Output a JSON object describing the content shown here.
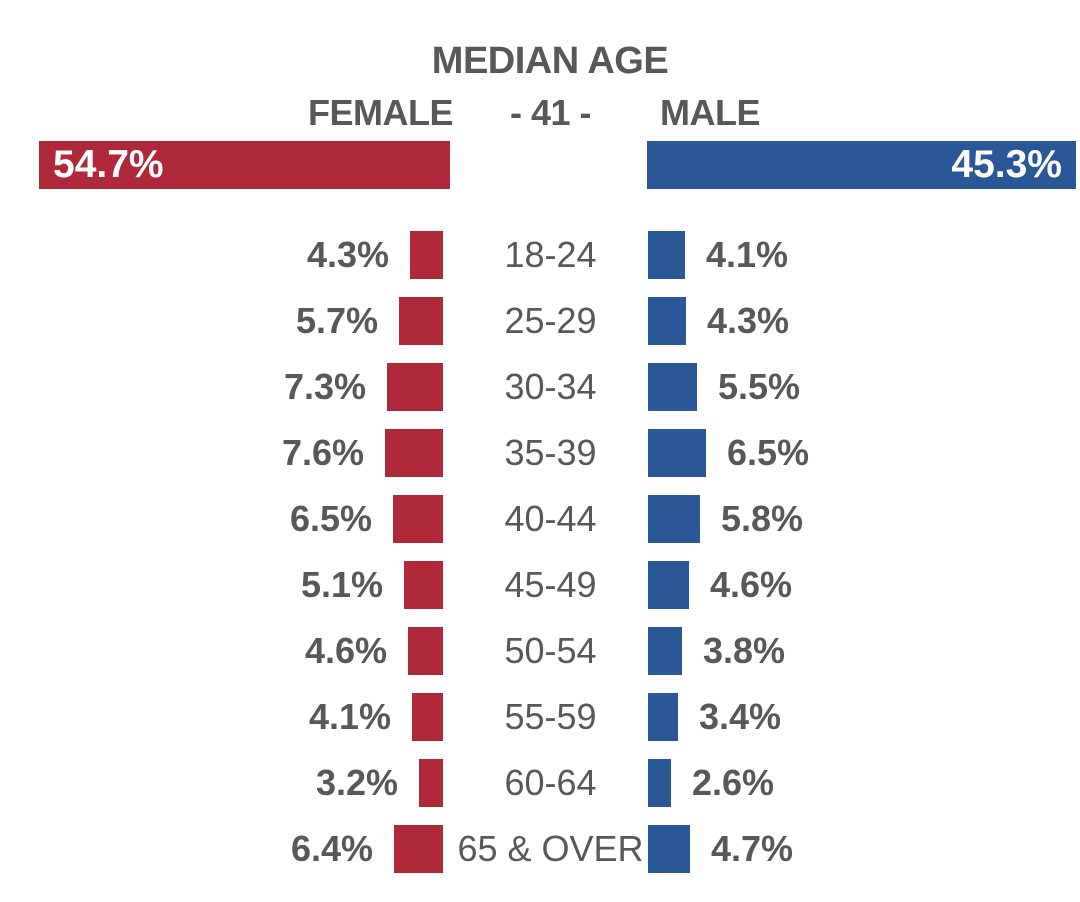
{
  "title": "MEDIAN AGE",
  "header": {
    "female_label": "FEMALE",
    "median_display": "- 41 -",
    "male_label": "MALE"
  },
  "totals": {
    "female_percent": "54.7%",
    "male_percent": "45.3%"
  },
  "colors": {
    "female_bar": "#B0293A",
    "male_bar": "#2A5796",
    "label_text": "#57585A",
    "bar_label_text": "#FFFFFF",
    "background": "#FFFFFF"
  },
  "chart_data": {
    "type": "bar",
    "subtype": "population-pyramid",
    "title": "MEDIAN AGE",
    "median_age": 41,
    "value_suffix": "%",
    "grid": false,
    "legend_position": "top",
    "categories": [
      "18-24",
      "25-29",
      "30-34",
      "35-39",
      "40-44",
      "45-49",
      "50-54",
      "55-59",
      "60-64",
      "65 & OVER"
    ],
    "series": [
      {
        "name": "FEMALE",
        "total": 54.7,
        "color": "#B0293A",
        "values": [
          4.3,
          5.7,
          7.3,
          7.6,
          6.5,
          5.1,
          4.6,
          4.1,
          3.2,
          6.4
        ]
      },
      {
        "name": "MALE",
        "total": 45.3,
        "color": "#2A5796",
        "values": [
          4.1,
          4.3,
          5.5,
          6.5,
          5.8,
          4.6,
          3.8,
          3.4,
          2.6,
          4.7
        ]
      }
    ]
  }
}
